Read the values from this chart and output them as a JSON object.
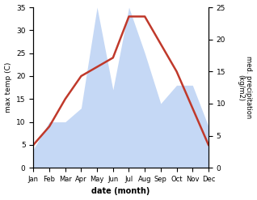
{
  "months": [
    "Jan",
    "Feb",
    "Mar",
    "Apr",
    "May",
    "Jun",
    "Jul",
    "Aug",
    "Sep",
    "Oct",
    "Nov",
    "Dec"
  ],
  "temp": [
    5,
    9,
    15,
    20,
    22,
    24,
    33,
    33,
    27,
    21,
    13,
    5
  ],
  "precip": [
    4,
    10,
    10,
    13,
    35,
    17,
    35,
    25,
    14,
    18,
    18,
    9
  ],
  "temp_color": "#c0392b",
  "precip_fill_color": "#c5d8f5",
  "ylabel_left": "max temp (C)",
  "ylabel_right": "med. precipitation\n(kg/m2)",
  "xlabel": "date (month)",
  "ylim_left": [
    0,
    35
  ],
  "ylim_right": [
    0,
    25
  ],
  "left_ticks": [
    0,
    5,
    10,
    15,
    20,
    25,
    30,
    35
  ],
  "right_ticks": [
    0,
    5,
    10,
    15,
    20,
    25
  ],
  "bg_color": "#ffffff",
  "line_width": 1.8,
  "precip_scale": 1.4
}
